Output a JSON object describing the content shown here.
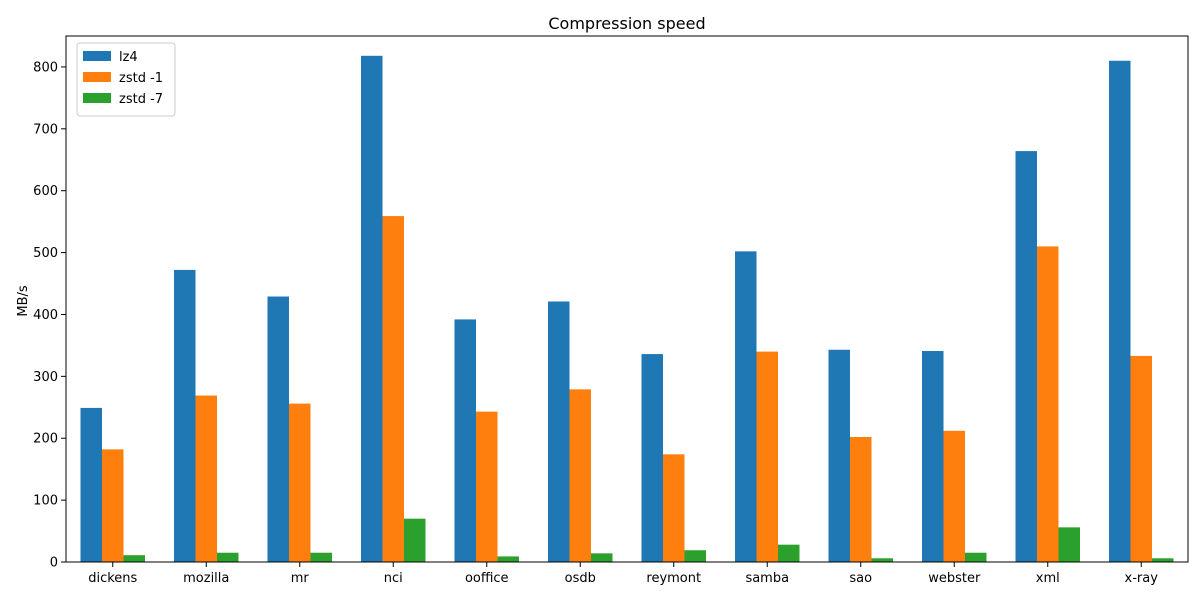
{
  "chart_data": {
    "type": "bar",
    "title": "Compression speed",
    "xlabel": "",
    "ylabel": "MB/s",
    "ylim": [
      0,
      850
    ],
    "yticks": [
      0,
      100,
      200,
      300,
      400,
      500,
      600,
      700,
      800
    ],
    "grid": false,
    "legend_position": "top-left",
    "categories": [
      "dickens",
      "mozilla",
      "mr",
      "nci",
      "ooffice",
      "osdb",
      "reymont",
      "samba",
      "sao",
      "webster",
      "xml",
      "x-ray"
    ],
    "series": [
      {
        "name": "lz4",
        "color": "#1f77b4",
        "values": [
          249,
          472,
          429,
          818,
          392,
          421,
          336,
          502,
          343,
          341,
          664,
          810
        ]
      },
      {
        "name": "zstd -1",
        "color": "#ff7f0e",
        "values": [
          182,
          269,
          256,
          559,
          243,
          279,
          174,
          340,
          202,
          212,
          510,
          333
        ]
      },
      {
        "name": "zstd -7",
        "color": "#2ca02c",
        "values": [
          11,
          15,
          15,
          70,
          9,
          14,
          19,
          28,
          6,
          15,
          56,
          6
        ]
      }
    ]
  }
}
